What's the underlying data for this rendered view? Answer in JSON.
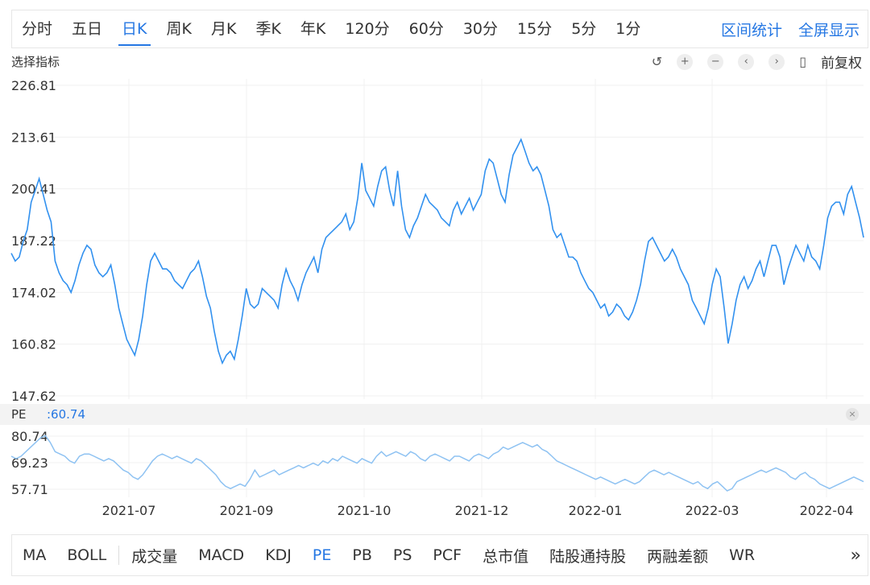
{
  "period_tabs": [
    "分时",
    "五日",
    "日K",
    "周K",
    "月K",
    "季K",
    "年K",
    "120分",
    "60分",
    "30分",
    "15分",
    "5分",
    "1分"
  ],
  "active_period": "日K",
  "period_links": {
    "range_stats": "区间统计",
    "fullscreen": "全屏显示"
  },
  "indicator_select": "选择指标",
  "toolbar": {
    "icons": [
      "undo-icon",
      "zoom-in-icon",
      "zoom-out-icon",
      "prev-icon",
      "next-icon",
      "candle-icon"
    ],
    "adjust_label": "前复权"
  },
  "pe_panel": {
    "name": "PE",
    "value": ":60.74"
  },
  "indicator_tabs": [
    "MA",
    "BOLL",
    "成交量",
    "MACD",
    "KDJ",
    "PE",
    "PB",
    "PS",
    "PCF",
    "总市值",
    "陆股通持股",
    "两融差额",
    "WR"
  ],
  "active_indicator": "PE",
  "more_label": "»",
  "colors": {
    "accent": "#2577e3",
    "line": "#3291ef",
    "pe_line": "#8ec2f2"
  },
  "chart_data": [
    {
      "type": "line",
      "title": "",
      "ylabel": "",
      "ylim": [
        147.62,
        226.81
      ],
      "y_ticks": [
        "226.81",
        "213.61",
        "200.41",
        "187.22",
        "174.02",
        "160.82",
        "147.62"
      ],
      "x_ticks": [
        "2021-07",
        "2021-09",
        "2021-10",
        "2021-12",
        "2022-01",
        "2022-03",
        "2022-04"
      ],
      "series": [
        {
          "values": [
            184,
            182,
            183,
            187,
            190,
            197,
            200,
            203,
            199,
            195,
            192,
            182,
            179,
            177,
            176,
            174,
            177,
            181,
            184,
            186,
            185,
            181,
            179,
            178,
            179,
            181,
            176,
            170,
            166,
            162,
            160,
            158,
            162,
            168,
            176,
            182,
            184,
            182,
            180,
            180,
            179,
            177,
            176,
            175,
            177,
            179,
            180,
            182,
            178,
            173,
            170,
            164,
            159,
            156,
            158,
            159,
            157,
            162,
            168,
            175,
            171,
            170,
            171,
            175,
            174,
            173,
            172,
            170,
            176,
            180,
            177,
            175,
            172,
            176,
            179,
            181,
            183,
            179,
            185,
            188,
            189,
            190,
            191,
            192,
            194,
            190,
            192,
            198,
            207,
            200,
            198,
            196,
            201,
            205,
            206,
            200,
            196,
            205,
            196,
            190,
            188,
            191,
            193,
            196,
            199,
            197,
            196,
            195,
            193,
            192,
            191,
            195,
            197,
            194,
            196,
            198,
            195,
            197,
            199,
            205,
            208,
            207,
            203,
            199,
            197,
            204,
            209,
            211,
            213,
            210,
            207,
            205,
            206,
            204,
            200,
            196,
            190,
            188,
            189,
            186,
            183,
            183,
            182,
            179,
            177,
            175,
            174,
            172,
            170,
            171,
            168,
            169,
            171,
            170,
            168,
            167,
            169,
            172,
            176,
            182,
            187,
            188,
            186,
            184,
            182,
            183,
            185,
            183,
            180,
            178,
            176,
            172,
            170,
            168,
            166,
            170,
            176,
            180,
            178,
            170,
            161,
            166,
            172,
            176,
            178,
            175,
            177,
            180,
            182,
            178,
            182,
            186,
            186,
            183,
            176,
            180,
            183,
            186,
            184,
            182,
            186,
            183,
            182,
            180,
            186,
            193,
            196,
            197,
            197,
            194,
            199,
            201,
            197,
            193,
            188
          ]
        }
      ]
    },
    {
      "type": "line",
      "title": "PE",
      "ylim": [
        57.71,
        80.74
      ],
      "y_ticks": [
        "80.74",
        "69.23",
        "57.71"
      ],
      "series": [
        {
          "values": [
            72,
            71,
            72,
            74,
            76,
            78,
            80,
            81,
            78,
            74,
            73,
            72,
            70,
            69,
            72,
            73,
            73,
            72,
            71,
            70,
            71,
            70,
            68,
            66,
            65,
            63,
            62,
            64,
            67,
            70,
            72,
            73,
            72,
            71,
            72,
            71,
            70,
            69,
            71,
            70,
            68,
            66,
            64,
            61,
            59,
            58,
            59,
            60,
            59,
            62,
            66,
            63,
            64,
            65,
            66,
            64,
            65,
            66,
            67,
            68,
            67,
            68,
            69,
            68,
            70,
            69,
            71,
            70,
            72,
            71,
            70,
            69,
            71,
            70,
            69,
            72,
            74,
            72,
            73,
            74,
            73,
            72,
            74,
            73,
            71,
            70,
            72,
            73,
            72,
            71,
            70,
            72,
            72,
            71,
            70,
            72,
            73,
            72,
            71,
            73,
            74,
            76,
            75,
            76,
            77,
            78,
            77,
            76,
            77,
            75,
            74,
            72,
            70,
            69,
            68,
            67,
            66,
            65,
            64,
            63,
            62,
            63,
            62,
            61,
            60,
            61,
            62,
            61,
            60,
            61,
            63,
            65,
            66,
            65,
            64,
            65,
            64,
            63,
            62,
            61,
            60,
            61,
            59,
            58,
            60,
            61,
            59,
            57,
            58,
            61,
            62,
            63,
            64,
            65,
            66,
            65,
            66,
            67,
            66,
            65,
            63,
            62,
            64,
            65,
            63,
            62,
            60,
            59,
            58,
            59,
            60,
            61,
            62,
            63,
            62,
            61
          ]
        }
      ]
    }
  ]
}
